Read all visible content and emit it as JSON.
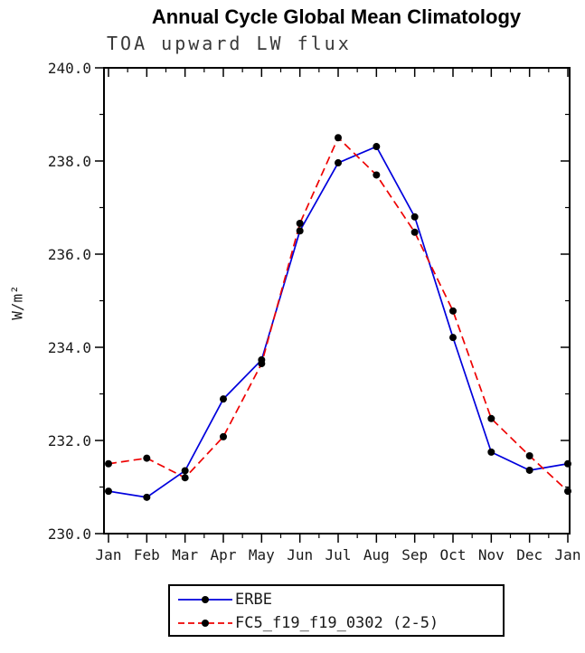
{
  "title": "Annual Cycle Global Mean Climatology",
  "chart_data": {
    "type": "line",
    "title": "Annual Cycle Global Mean Climatology",
    "subtitle": "TOA upward LW flux",
    "xlabel": "",
    "ylabel": "W/m²",
    "ylim": [
      230.0,
      240.0
    ],
    "y_ticks": [
      230.0,
      232.0,
      234.0,
      236.0,
      238.0,
      240.0
    ],
    "y_tick_labels": [
      "230.0",
      "232.0",
      "234.0",
      "236.0",
      "238.0",
      "240.0"
    ],
    "y_minor_step": 1.0,
    "x_tick_labels": [
      "Jan",
      "Feb",
      "Mar",
      "Apr",
      "May",
      "Jun",
      "Jul",
      "Aug",
      "Sep",
      "Oct",
      "Nov",
      "Dec",
      "Jan"
    ],
    "grid": false,
    "legend_position": "bottom",
    "axis_color": "#000000",
    "marker": "filled-circle",
    "marker_color": "#000000",
    "series": [
      {
        "name": "ERBE",
        "color": "#0000dd",
        "style": "solid",
        "values": [
          230.91,
          230.78,
          231.35,
          232.89,
          233.73,
          236.5,
          237.96,
          238.31,
          236.8,
          234.21,
          231.75,
          231.36,
          231.5
        ]
      },
      {
        "name": "FC5_f19_f19_0302 (2-5)",
        "color": "#ee0000",
        "style": "dashed",
        "values": [
          231.5,
          231.62,
          231.2,
          232.08,
          233.65,
          236.66,
          238.5,
          237.7,
          236.47,
          234.78,
          232.47,
          231.67,
          230.91
        ]
      }
    ]
  }
}
